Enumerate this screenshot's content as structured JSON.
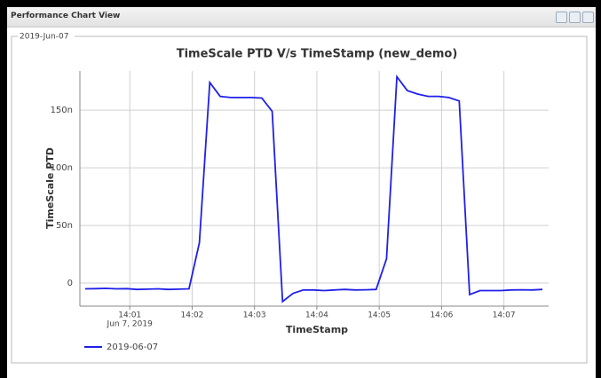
{
  "panel_title": "Performance Chart View",
  "group_label": "2019-Jun-07",
  "chart_data": {
    "type": "line",
    "title": "TimeScale PTD V/s TimeStamp (new_demo)",
    "x_label": "TimeStamp",
    "y_label": "TimeScale PTD",
    "x": [
      "14:00:17",
      "14:00:27",
      "14:00:37",
      "14:00:47",
      "14:00:57",
      "14:01:07",
      "14:01:17",
      "14:01:27",
      "14:01:37",
      "14:01:47",
      "14:01:57",
      "14:02:07",
      "14:02:17",
      "14:02:27",
      "14:02:37",
      "14:02:47",
      "14:02:57",
      "14:03:07",
      "14:03:17",
      "14:03:27",
      "14:03:37",
      "14:03:47",
      "14:03:57",
      "14:04:07",
      "14:04:17",
      "14:04:27",
      "14:04:37",
      "14:04:47",
      "14:04:57",
      "14:05:07",
      "14:05:17",
      "14:05:27",
      "14:05:37",
      "14:05:47",
      "14:05:57",
      "14:06:07",
      "14:06:17",
      "14:06:27",
      "14:06:37",
      "14:06:47",
      "14:06:57",
      "14:07:07",
      "14:07:17",
      "14:07:27",
      "14:07:37"
    ],
    "series": [
      {
        "name": "2019-06-07",
        "color": "#2020e8",
        "values": [
          -5,
          -4.8,
          -4.6,
          -5,
          -4.8,
          -5.5,
          -5.3,
          -5,
          -5.5,
          -5.3,
          -5,
          35,
          174,
          162,
          161,
          161,
          161,
          160.5,
          149,
          -16,
          -9,
          -6,
          -6,
          -6.5,
          -6,
          -5.5,
          -6,
          -5.8,
          -5.5,
          21,
          179,
          167,
          164,
          162,
          162,
          161,
          158,
          -10,
          -6.5,
          -6.5,
          -6.5,
          -6,
          -5.8,
          -6,
          -5.5
        ]
      }
    ],
    "xlim": [
      "14:00:12",
      "14:07:43"
    ],
    "xticks": [
      "14:01",
      "14:02",
      "14:03",
      "14:04",
      "14:05",
      "14:06",
      "14:07"
    ],
    "x_date_label": "Jun 7, 2019",
    "ylim": [
      -20,
      184
    ],
    "yticks": [
      {
        "value": 0,
        "label": "0"
      },
      {
        "value": 50,
        "label": "50n"
      },
      {
        "value": 100,
        "label": "100n"
      },
      {
        "value": 150,
        "label": "150n"
      }
    ],
    "grid": true,
    "legend": "bottom-left"
  }
}
